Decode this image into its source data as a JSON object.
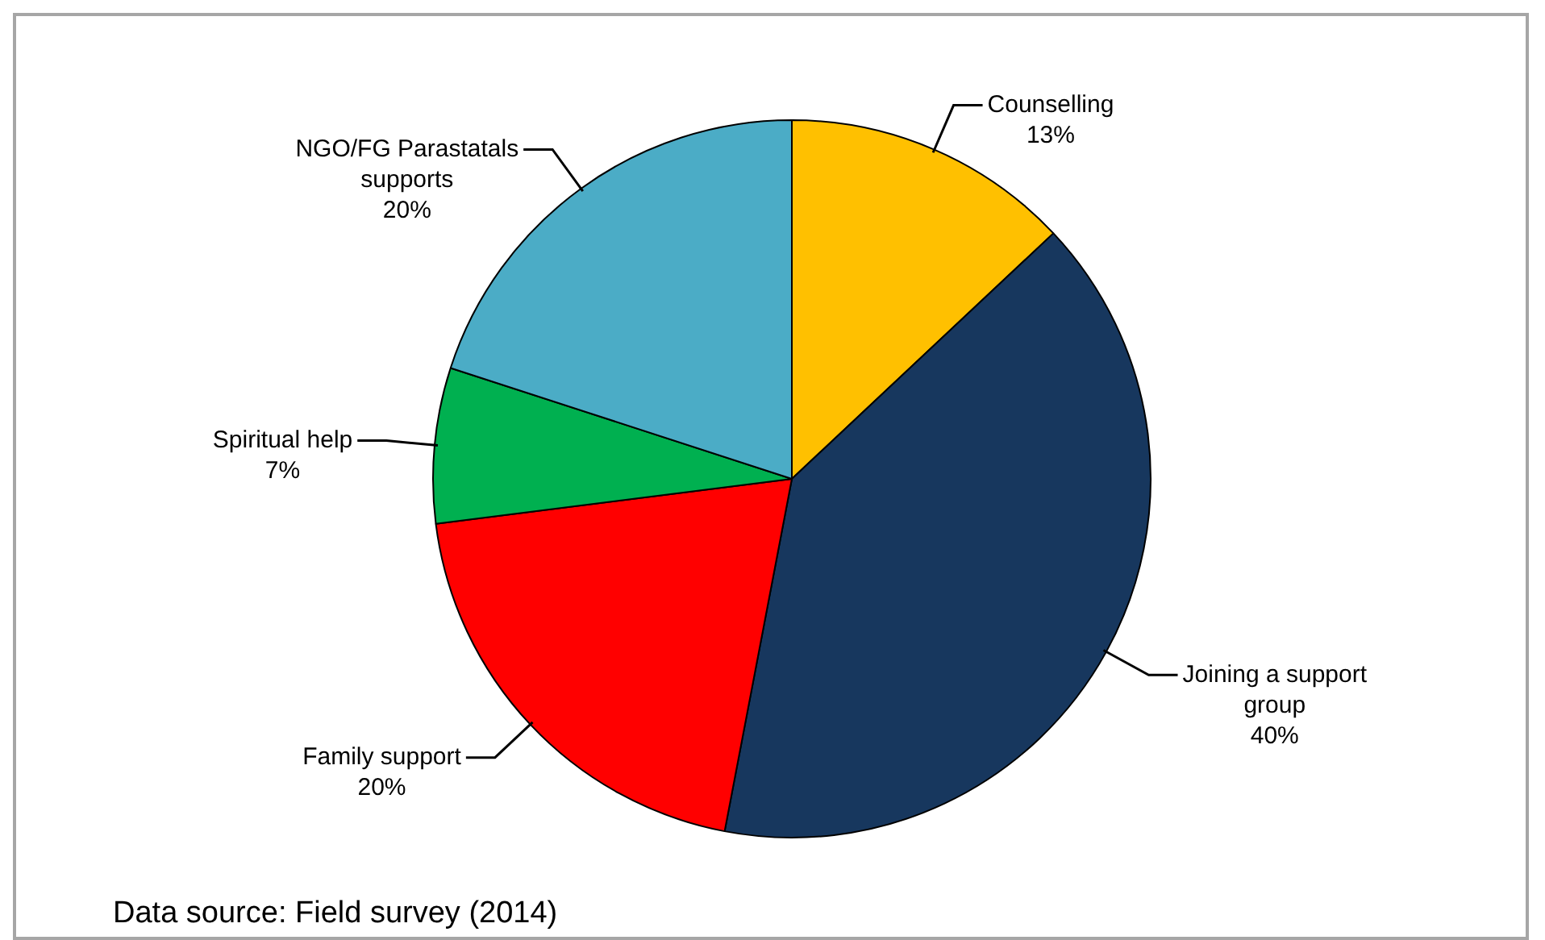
{
  "chart_data": {
    "type": "pie",
    "categories": [
      "Counselling",
      "Joining a support group",
      "Family support",
      "Spiritual help",
      "NGO/FG Parastatals supports"
    ],
    "values": [
      13,
      40,
      20,
      7,
      20
    ],
    "value_labels": [
      "13%",
      "40%",
      "20%",
      "7%",
      "20%"
    ],
    "colors": [
      "#ffc000",
      "#17375e",
      "#ff0000",
      "#00b050",
      "#4bacc6"
    ],
    "legend": false,
    "annotations": [
      "Data source: Field survey (2014)"
    ]
  }
}
